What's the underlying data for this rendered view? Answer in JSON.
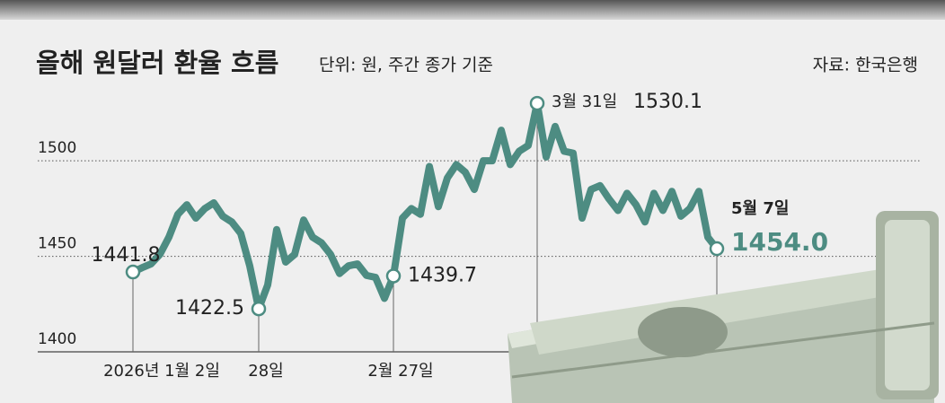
{
  "chart_data": {
    "type": "line",
    "title": "올해 원달러 환율 흐름",
    "subtitle": "단위: 원, 주간 종가 기준",
    "source": "자료: 한국은행",
    "annotations": [
      "3월 31일",
      "5월 7일"
    ],
    "categories": [
      "2026년 1월 2일",
      null,
      null,
      null,
      null,
      null,
      null,
      null,
      null,
      null,
      null,
      null,
      null,
      null,
      "28일",
      null,
      null,
      null,
      null,
      null,
      null,
      null,
      null,
      null,
      null,
      null,
      null,
      null,
      null,
      "2월 27일",
      null,
      null,
      null,
      null,
      null,
      null,
      null,
      null,
      null,
      null,
      null,
      null,
      null,
      null,
      null,
      null,
      null,
      null,
      null,
      null,
      null,
      null,
      null,
      null,
      null,
      null,
      null,
      null,
      null,
      null,
      null,
      null,
      null,
      null,
      null,
      null
    ],
    "values": [
      1441.8,
      1444,
      1446,
      1451,
      1460,
      1472,
      1477,
      1470,
      1475,
      1478,
      1471,
      1468,
      1462,
      1445,
      1422.5,
      1435,
      1464,
      1447,
      1451,
      1469,
      1460,
      1457,
      1451,
      1441,
      1445,
      1446,
      1440,
      1439,
      1428,
      1439.7,
      1470,
      1475,
      1472,
      1497,
      1476,
      1491,
      1498,
      1494,
      1485,
      1500,
      1500,
      1516,
      1498,
      1505,
      1508,
      1530.1,
      1502,
      1518,
      1505,
      1504,
      1470,
      1485,
      1487,
      1480,
      1474,
      1483,
      1477,
      1468,
      1483,
      1474,
      1484,
      1471,
      1475,
      1484,
      1460,
      1454.0
    ],
    "value_labels": [
      "1441.8",
      null,
      null,
      null,
      null,
      null,
      null,
      null,
      null,
      null,
      null,
      null,
      null,
      null,
      "1422.5",
      null,
      null,
      null,
      null,
      null,
      null,
      null,
      null,
      null,
      null,
      null,
      null,
      null,
      null,
      "1439.7",
      null,
      null,
      null,
      null,
      null,
      null,
      null,
      null,
      null,
      null,
      null,
      null,
      null,
      null,
      null,
      "1530.1",
      null,
      null,
      null,
      null,
      null,
      null,
      null,
      null,
      null,
      null,
      null,
      null,
      null,
      null,
      null,
      null,
      null,
      null,
      null,
      "1454.0"
    ],
    "color": "#4d8c82",
    "ylim": [
      1400,
      1540
    ],
    "yticks": [
      1400,
      1450,
      1500
    ],
    "grid": true
  }
}
